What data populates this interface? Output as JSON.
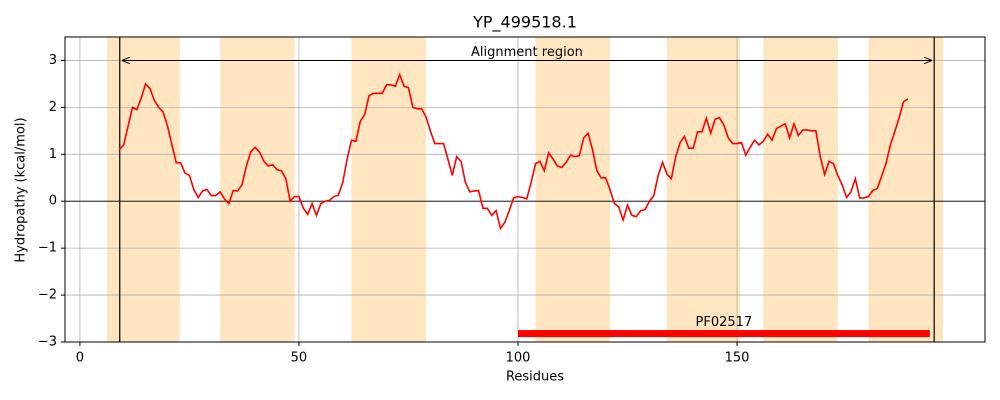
{
  "chart_data": {
    "type": "line",
    "title": "YP_499518.1",
    "x_label": "Residues",
    "y_label": "Hydropathy (kcal/mol)",
    "xlim": [
      -3.4,
      206.6
    ],
    "ylim": [
      -3,
      3.5
    ],
    "xticks": [
      0,
      50,
      100,
      150
    ],
    "yticks": [
      {
        "value": -3,
        "label": "−3"
      },
      {
        "value": -2,
        "label": "−2"
      },
      {
        "value": -1,
        "label": "−1"
      },
      0,
      1,
      2,
      3
    ],
    "grid": true,
    "hline": 0,
    "regions": [
      [
        6.2,
        22.8
      ],
      [
        32,
        49
      ],
      [
        62,
        79
      ],
      [
        104,
        121
      ],
      [
        134,
        150.7
      ],
      [
        156,
        173
      ],
      [
        180,
        197
      ]
    ],
    "region_color": "#ffe6c0",
    "vlines": [
      9.1,
      195
    ],
    "annotation": {
      "text": "Alignment region",
      "y": 3
    },
    "domain": {
      "label": "PF02517",
      "start": 100,
      "end": 194,
      "y": -2.82,
      "color": "#ff0000"
    },
    "x": [
      9,
      10,
      11,
      12,
      13,
      14,
      15,
      16,
      17,
      18,
      19,
      20,
      21,
      22,
      23,
      24,
      25,
      26,
      27,
      28,
      29,
      30,
      31,
      32,
      33,
      34,
      35,
      36,
      37,
      38,
      39,
      40,
      41,
      42,
      43,
      44,
      45,
      46,
      47,
      48,
      49,
      50,
      51,
      52,
      53,
      54,
      55,
      56,
      57,
      58,
      59,
      60,
      61,
      62,
      63,
      64,
      65,
      66,
      67,
      68,
      69,
      70,
      71,
      72,
      73,
      74,
      75,
      76,
      77,
      78,
      79,
      80,
      81,
      82,
      83,
      84,
      85,
      86,
      87,
      88,
      89,
      90,
      91,
      92,
      93,
      94,
      95,
      96,
      97,
      98,
      99,
      100,
      101,
      102,
      103,
      104,
      105,
      106,
      107,
      108,
      109,
      110,
      111,
      112,
      113,
      114,
      115,
      116,
      117,
      118,
      119,
      120,
      121,
      122,
      123,
      124,
      125,
      126,
      127,
      128,
      129,
      130,
      131,
      132,
      133,
      134,
      135,
      136,
      137,
      138,
      139,
      140,
      141,
      142,
      143,
      144,
      145,
      146,
      147,
      148,
      149,
      150,
      151,
      152,
      153,
      154,
      155,
      156,
      157,
      158,
      159,
      160,
      161,
      162,
      163,
      164,
      165,
      166,
      167,
      168,
      169,
      170,
      171,
      172,
      173,
      174,
      175,
      176,
      177,
      178,
      179,
      180,
      181,
      182,
      183,
      184,
      185,
      186,
      187,
      188,
      189
    ],
    "series": [
      {
        "color": "#ff0000",
        "values": [
          1.1,
          1.2,
          1.6,
          2.0,
          1.95,
          2.2,
          2.5,
          2.4,
          2.15,
          2.0,
          1.9,
          1.6,
          1.2,
          0.82,
          0.82,
          0.6,
          0.55,
          0.25,
          0.08,
          0.22,
          0.25,
          0.12,
          0.12,
          0.2,
          0.05,
          -0.05,
          0.23,
          0.22,
          0.35,
          0.75,
          1.05,
          1.15,
          1.05,
          0.85,
          0.75,
          0.78,
          0.67,
          0.65,
          0.48,
          0.0,
          0.1,
          0.1,
          -0.15,
          -0.28,
          -0.05,
          -0.3,
          -0.05,
          0.0,
          0.02,
          0.1,
          0.13,
          0.4,
          0.9,
          1.3,
          1.28,
          1.7,
          1.85,
          2.25,
          2.3,
          2.3,
          2.3,
          2.48,
          2.48,
          2.45,
          2.7,
          2.45,
          2.42,
          2.0,
          1.97,
          1.97,
          1.8,
          1.5,
          1.23,
          1.23,
          1.23,
          0.9,
          0.55,
          0.95,
          0.85,
          0.4,
          0.2,
          0.22,
          0.23,
          -0.15,
          -0.15,
          -0.3,
          -0.2,
          -0.58,
          -0.45,
          -0.2,
          0.07,
          0.1,
          0.08,
          0.05,
          0.4,
          0.8,
          0.85,
          0.65,
          1.03,
          0.9,
          0.75,
          0.72,
          0.83,
          0.98,
          0.95,
          0.97,
          1.35,
          1.45,
          1.1,
          0.65,
          0.5,
          0.5,
          0.25,
          -0.05,
          -0.12,
          -0.4,
          -0.08,
          -0.3,
          -0.33,
          -0.2,
          -0.18,
          0.0,
          0.12,
          0.55,
          0.83,
          0.58,
          0.48,
          0.95,
          1.25,
          1.38,
          1.13,
          1.13,
          1.48,
          1.48,
          1.77,
          1.45,
          1.75,
          1.78,
          1.62,
          1.35,
          1.23,
          1.23,
          1.25,
          0.98,
          1.15,
          1.3,
          1.2,
          1.28,
          1.43,
          1.3,
          1.55,
          1.6,
          1.65,
          1.35,
          1.65,
          1.4,
          1.52,
          1.52,
          1.5,
          1.5,
          0.95,
          0.57,
          0.85,
          0.8,
          0.55,
          0.35,
          0.08,
          0.2,
          0.48,
          0.07,
          0.07,
          0.1,
          0.23,
          0.27,
          0.53,
          0.8,
          1.2,
          1.48,
          1.78,
          2.12,
          2.18
        ]
      }
    ]
  }
}
